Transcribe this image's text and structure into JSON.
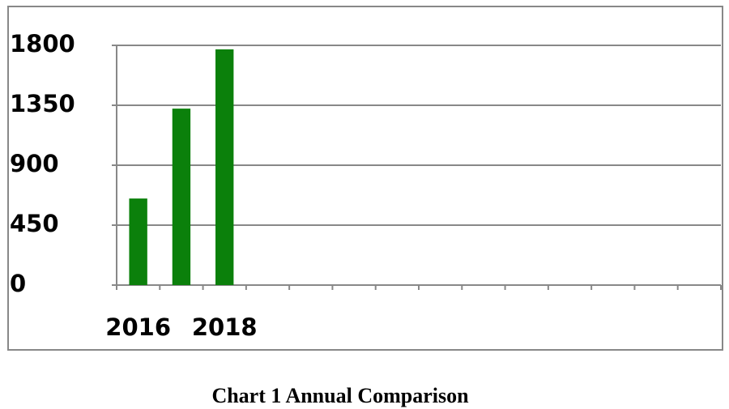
{
  "chart_data": {
    "type": "bar",
    "title": "Chart 1 Annual Comparison",
    "categories": [
      "2016",
      null,
      "2018",
      null,
      null,
      null,
      null,
      null,
      null,
      null,
      null,
      null,
      null,
      null
    ],
    "values": [
      650,
      1325,
      1770,
      null,
      null,
      null,
      null,
      null,
      null,
      null,
      null,
      null,
      null,
      null
    ],
    "color": "#0b800b",
    "ylim": [
      0,
      1800
    ],
    "yticks": [
      0,
      450,
      900,
      1350,
      1800
    ],
    "grid": true
  }
}
